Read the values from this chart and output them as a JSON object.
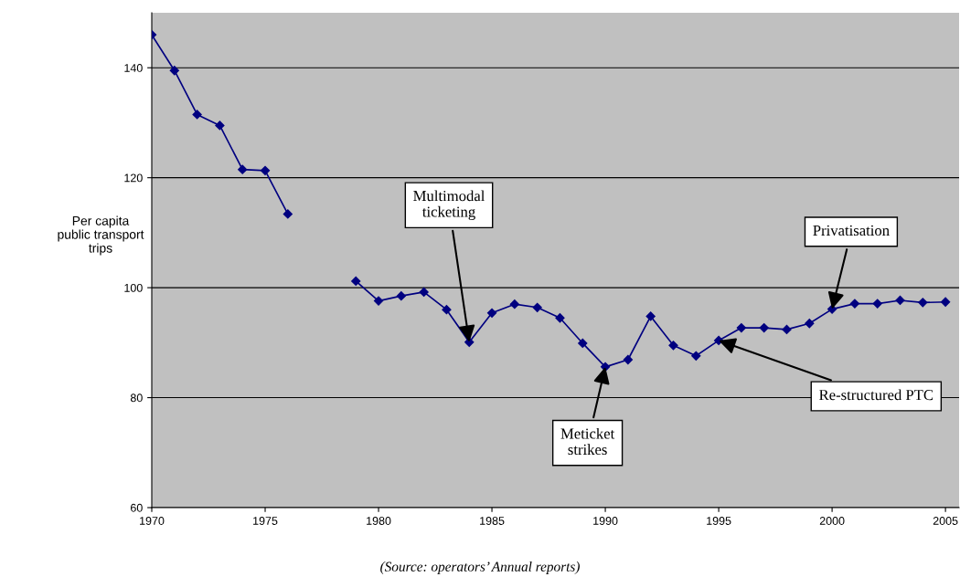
{
  "chart_data": {
    "type": "line",
    "ylabel": "Per capita\npublic transport\ntrips",
    "x": [
      1970,
      1971,
      1972,
      1973,
      1974,
      1975,
      1976,
      1977,
      1978,
      1979,
      1980,
      1981,
      1982,
      1983,
      1984,
      1985,
      1986,
      1987,
      1988,
      1989,
      1990,
      1991,
      1992,
      1993,
      1994,
      1995,
      1996,
      1997,
      1998,
      1999,
      2000,
      2001,
      2002,
      2003,
      2004,
      2005
    ],
    "series": [
      {
        "color": "#000080",
        "values": [
          146,
          139.5,
          131.5,
          129.5,
          121.5,
          121.3,
          113.4,
          null,
          null,
          101.2,
          97.6,
          98.5,
          99.2,
          96.0,
          90.1,
          95.4,
          97.0,
          96.4,
          94.5,
          89.9,
          85.6,
          86.9,
          94.8,
          89.5,
          87.6,
          90.4,
          92.7,
          92.7,
          92.4,
          93.5,
          96.1,
          97.1,
          97.1,
          97.7,
          97.3,
          97.4
        ]
      }
    ],
    "xlim": [
      1970,
      2005.6
    ],
    "xticks": [
      1970,
      1975,
      1980,
      1985,
      1990,
      1995,
      2000,
      2005
    ],
    "ylim": [
      60,
      150
    ],
    "yticks": [
      60,
      80,
      100,
      120,
      140
    ],
    "grid": "y",
    "marker": "diamond",
    "line_style": "solid",
    "annotations": [
      {
        "text": "Multimodal\nticketing",
        "x": 1984,
        "y": 90.1
      },
      {
        "text": "Meticket\nstrikes",
        "x": 1990,
        "y": 85.6
      },
      {
        "text": "Re-structured PTC",
        "x": 1995,
        "y": 90.4
      },
      {
        "text": "Privatisation",
        "x": 2000,
        "y": 96.1
      },
      "(Source: operators’ Annual reports)"
    ]
  }
}
